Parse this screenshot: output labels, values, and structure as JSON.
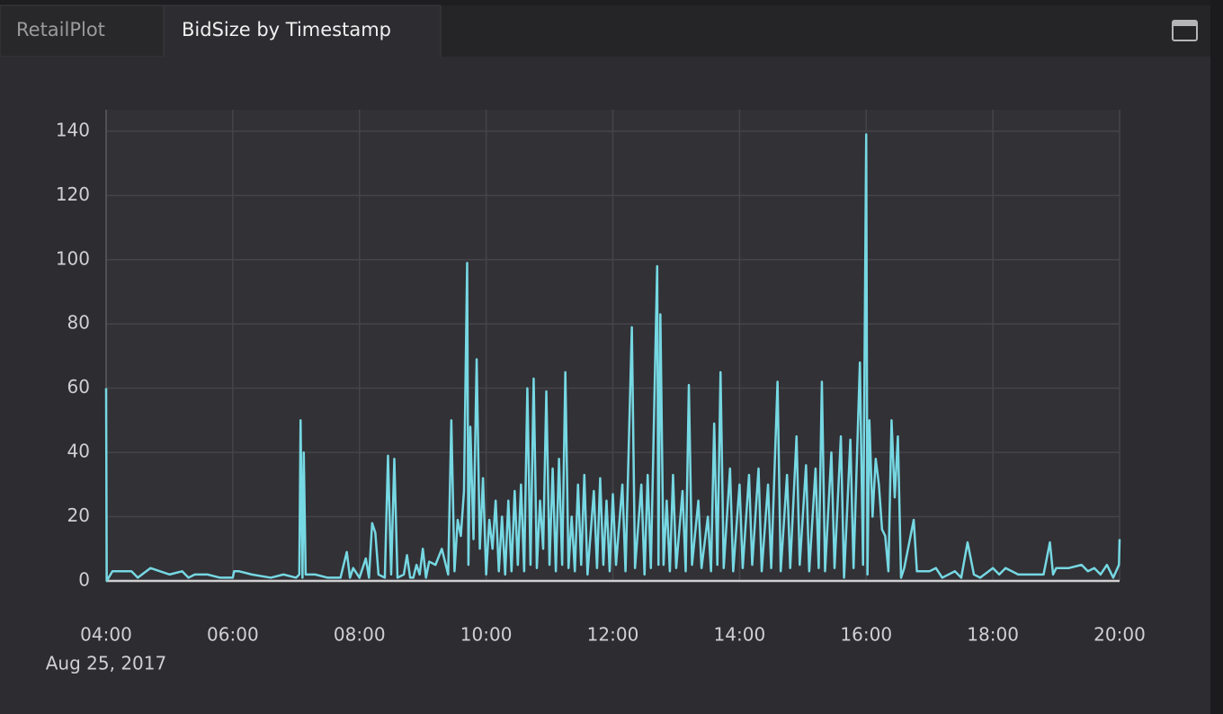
{
  "tabs": [
    "RetailPlot",
    "BidSize by Timestamp"
  ],
  "chart_data": {
    "type": "line",
    "date_label": "Aug 25, 2017",
    "color": "#76d8e3",
    "grid": true,
    "x": [
      4,
      4.01,
      4.1,
      4.2,
      4.4,
      4.5,
      4.7,
      5,
      5.2,
      5.3,
      5.4,
      5.6,
      5.8,
      6,
      6.02,
      6.1,
      6.3,
      6.6,
      6.8,
      7,
      7.05,
      7.07,
      7.1,
      7.12,
      7.15,
      7.3,
      7.5,
      7.6,
      7.7,
      7.8,
      7.85,
      7.9,
      8,
      8.1,
      8.15,
      8.2,
      8.25,
      8.3,
      8.4,
      8.45,
      8.5,
      8.55,
      8.6,
      8.7,
      8.75,
      8.8,
      8.85,
      8.9,
      8.95,
      9,
      9.05,
      9.1,
      9.2,
      9.3,
      9.4,
      9.45,
      9.5,
      9.55,
      9.6,
      9.65,
      9.7,
      9.72,
      9.75,
      9.8,
      9.85,
      9.9,
      9.95,
      10,
      10.05,
      10.1,
      10.15,
      10.2,
      10.25,
      10.3,
      10.35,
      10.4,
      10.45,
      10.5,
      10.55,
      10.6,
      10.65,
      10.7,
      10.75,
      10.8,
      10.85,
      10.9,
      10.95,
      11,
      11.05,
      11.1,
      11.15,
      11.2,
      11.25,
      11.3,
      11.35,
      11.4,
      11.45,
      11.5,
      11.55,
      11.6,
      11.7,
      11.75,
      11.8,
      11.85,
      11.9,
      11.95,
      12,
      12.05,
      12.15,
      12.2,
      12.3,
      12.35,
      12.45,
      12.5,
      12.55,
      12.6,
      12.7,
      12.72,
      12.75,
      12.8,
      12.85,
      12.9,
      12.95,
      13,
      13.1,
      13.15,
      13.2,
      13.25,
      13.35,
      13.4,
      13.5,
      13.55,
      13.6,
      13.65,
      13.7,
      13.75,
      13.85,
      13.9,
      14,
      14.05,
      14.15,
      14.2,
      14.3,
      14.35,
      14.45,
      14.5,
      14.6,
      14.65,
      14.75,
      14.8,
      14.9,
      14.95,
      15.05,
      15.1,
      15.2,
      15.25,
      15.3,
      15.35,
      15.45,
      15.5,
      15.6,
      15.65,
      15.75,
      15.8,
      15.9,
      15.95,
      16,
      16.02,
      16.05,
      16.1,
      16.15,
      16.2,
      16.25,
      16.3,
      16.35,
      16.4,
      16.45,
      16.5,
      16.55,
      16.6,
      16.75,
      16.8,
      17,
      17.1,
      17.2,
      17.4,
      17.5,
      17.6,
      17.7,
      17.8,
      18,
      18.1,
      18.2,
      18.4,
      18.6,
      18.8,
      18.9,
      18.95,
      19,
      19.2,
      19.4,
      19.5,
      19.6,
      19.7,
      19.8,
      19.9,
      19.99,
      20
    ],
    "values": [
      60,
      0,
      3,
      3,
      3,
      1,
      4,
      2,
      3,
      1,
      2,
      2,
      1,
      1,
      3,
      3,
      2,
      1,
      2,
      1,
      2,
      50,
      1,
      40,
      2,
      2,
      1,
      1,
      1,
      9,
      1,
      4,
      1,
      7,
      1,
      18,
      15,
      2,
      1,
      39,
      2,
      38,
      1,
      2,
      8,
      1,
      1,
      5,
      2,
      10,
      1,
      6,
      5,
      10,
      2,
      50,
      3,
      19,
      14,
      28,
      99,
      5,
      48,
      13,
      69,
      10,
      32,
      2,
      19,
      10,
      25,
      3,
      20,
      2,
      25,
      3,
      28,
      5,
      30,
      3,
      60,
      5,
      63,
      4,
      25,
      10,
      59,
      5,
      35,
      3,
      38,
      5,
      65,
      4,
      20,
      3,
      30,
      5,
      33,
      2,
      28,
      4,
      32,
      5,
      25,
      3,
      27,
      5,
      30,
      3,
      79,
      4,
      30,
      2,
      33,
      4,
      98,
      5,
      83,
      5,
      25,
      3,
      33,
      4,
      28,
      3,
      61,
      5,
      25,
      4,
      20,
      3,
      49,
      5,
      65,
      4,
      35,
      3,
      30,
      4,
      33,
      5,
      35,
      3,
      30,
      4,
      62,
      3,
      33,
      4,
      45,
      5,
      36,
      3,
      35,
      4,
      62,
      3,
      40,
      4,
      45,
      1,
      44,
      4,
      68,
      5,
      139,
      2,
      50,
      20,
      38,
      30,
      16,
      14,
      3,
      50,
      26,
      45,
      1,
      4,
      19,
      3,
      3,
      4,
      1,
      3,
      1,
      12,
      2,
      1,
      4,
      2,
      4,
      2,
      2,
      2,
      12,
      2,
      4,
      4,
      5,
      3,
      4,
      2,
      5,
      1,
      5,
      13
    ],
    "xlim": [
      4,
      20
    ],
    "xticks": [
      {
        "value": 4,
        "label": "04:00"
      },
      {
        "value": 6,
        "label": "06:00"
      },
      {
        "value": 8,
        "label": "08:00"
      },
      {
        "value": 10,
        "label": "10:00"
      },
      {
        "value": 12,
        "label": "12:00"
      },
      {
        "value": 14,
        "label": "14:00"
      },
      {
        "value": 16,
        "label": "16:00"
      },
      {
        "value": 18,
        "label": "18:00"
      },
      {
        "value": 20,
        "label": "20:00"
      }
    ],
    "ylim": [
      0,
      146.7
    ],
    "yticks": [
      0,
      20,
      40,
      60,
      80,
      100,
      120,
      140
    ]
  }
}
